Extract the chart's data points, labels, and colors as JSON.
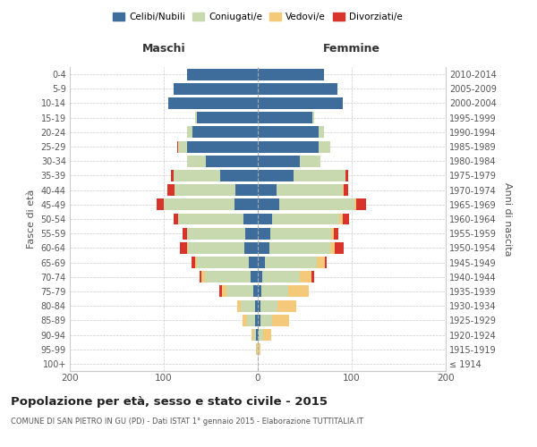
{
  "age_groups": [
    "100+",
    "95-99",
    "90-94",
    "85-89",
    "80-84",
    "75-79",
    "70-74",
    "65-69",
    "60-64",
    "55-59",
    "50-54",
    "45-49",
    "40-44",
    "35-39",
    "30-34",
    "25-29",
    "20-24",
    "15-19",
    "10-14",
    "5-9",
    "0-4"
  ],
  "birth_years": [
    "≤ 1914",
    "1915-1919",
    "1920-1924",
    "1925-1929",
    "1930-1934",
    "1935-1939",
    "1940-1944",
    "1945-1949",
    "1950-1954",
    "1955-1959",
    "1960-1964",
    "1965-1969",
    "1970-1974",
    "1975-1979",
    "1980-1984",
    "1985-1989",
    "1990-1994",
    "1995-1999",
    "2000-2004",
    "2005-2009",
    "2010-2014"
  ],
  "male": {
    "celibi": [
      0,
      0,
      2,
      3,
      3,
      5,
      8,
      10,
      14,
      13,
      15,
      25,
      24,
      40,
      55,
      75,
      70,
      65,
      95,
      90,
      75
    ],
    "coniugati": [
      0,
      1,
      3,
      8,
      15,
      28,
      48,
      55,
      60,
      62,
      70,
      75,
      65,
      50,
      20,
      10,
      5,
      2,
      0,
      0,
      0
    ],
    "vedovi": [
      0,
      1,
      2,
      5,
      4,
      5,
      4,
      2,
      1,
      0,
      0,
      0,
      0,
      0,
      0,
      0,
      0,
      0,
      0,
      0,
      0
    ],
    "divorziati": [
      0,
      0,
      0,
      0,
      0,
      3,
      2,
      3,
      8,
      5,
      5,
      8,
      7,
      2,
      0,
      1,
      0,
      0,
      0,
      0,
      0
    ]
  },
  "female": {
    "nubili": [
      0,
      0,
      1,
      3,
      3,
      4,
      5,
      8,
      12,
      13,
      15,
      23,
      20,
      38,
      45,
      65,
      65,
      58,
      90,
      85,
      70
    ],
    "coniugate": [
      0,
      1,
      5,
      12,
      18,
      28,
      40,
      55,
      65,
      65,
      72,
      80,
      70,
      55,
      22,
      12,
      5,
      2,
      0,
      0,
      0
    ],
    "vedove": [
      0,
      2,
      8,
      18,
      20,
      22,
      12,
      8,
      5,
      3,
      3,
      2,
      1,
      0,
      0,
      0,
      0,
      0,
      0,
      0,
      0
    ],
    "divorziate": [
      0,
      0,
      0,
      0,
      0,
      0,
      3,
      2,
      9,
      5,
      7,
      10,
      5,
      3,
      0,
      0,
      0,
      0,
      0,
      0,
      0
    ]
  },
  "colors": {
    "celibi_nubili": "#3e6d9c",
    "coniugati": "#c8d9b0",
    "vedovi": "#f5c97a",
    "divorziati": "#d9342b"
  },
  "xlim": 200,
  "title": "Popolazione per età, sesso e stato civile - 2015",
  "subtitle": "COMUNE DI SAN PIETRO IN GU (PD) - Dati ISTAT 1° gennaio 2015 - Elaborazione TUTTITALIA.IT",
  "ylabel_left": "Fasce di età",
  "ylabel_right": "Anni di nascita",
  "label_maschi": "Maschi",
  "label_femmine": "Femmine",
  "legend_labels": [
    "Celibi/Nubili",
    "Coniugati/e",
    "Vedovi/e",
    "Divorziati/e"
  ],
  "background_color": "#ffffff",
  "bar_height": 0.8
}
